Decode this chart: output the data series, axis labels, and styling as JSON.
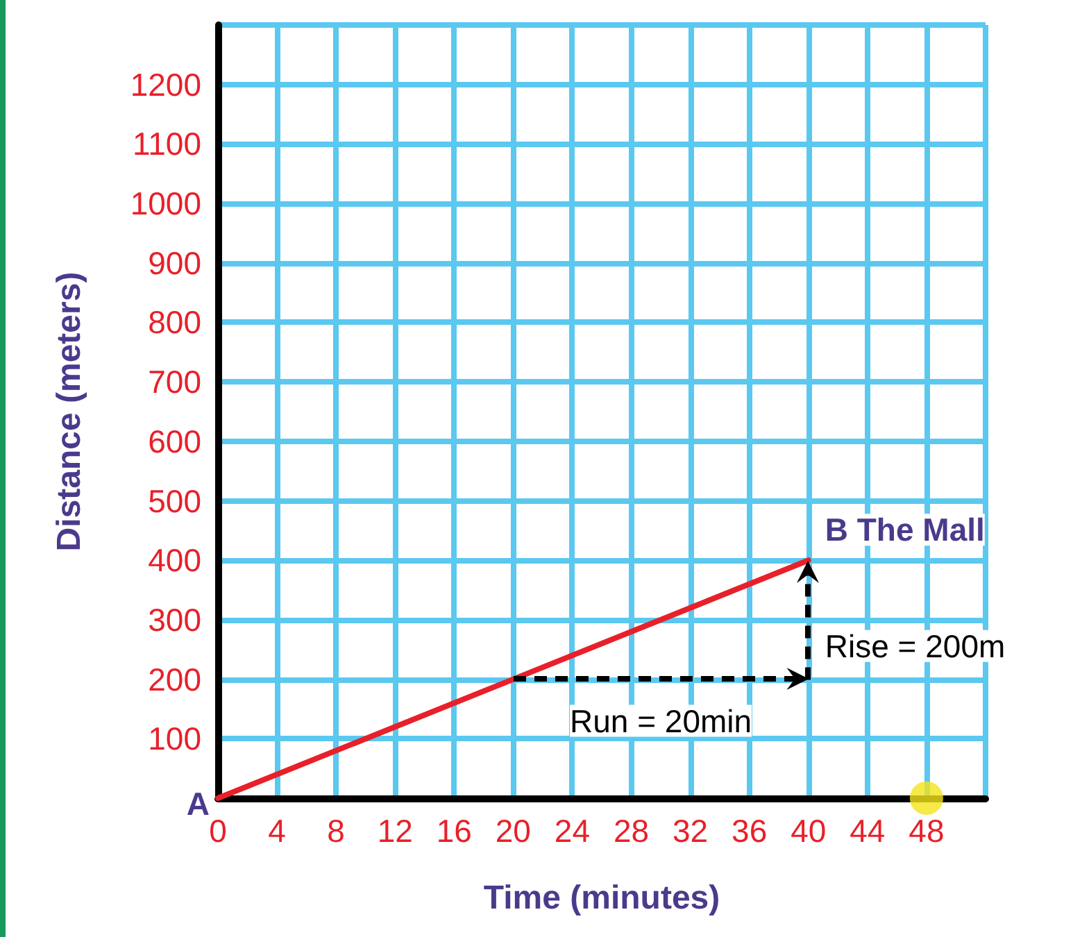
{
  "chart_data": {
    "type": "line",
    "xlabel": "Time (minutes)",
    "ylabel": "Distance (meters)",
    "xlim": [
      0,
      52
    ],
    "ylim": [
      0,
      1300
    ],
    "xticks": [
      0,
      4,
      8,
      12,
      16,
      20,
      24,
      28,
      32,
      36,
      40,
      44,
      48,
      {
        "value": 52,
        "label": null
      }
    ],
    "yticks": [
      {
        "value": 0,
        "label": null
      },
      100,
      200,
      300,
      400,
      500,
      600,
      700,
      800,
      900,
      1000,
      1100,
      1200,
      {
        "value": 1300,
        "label": null
      }
    ],
    "grid": true,
    "series": [
      {
        "color": "#e8202a",
        "x": [
          0,
          40
        ],
        "values": [
          0,
          400
        ]
      },
      {
        "type": "scatter",
        "color": "#f5e31a",
        "x": [
          48
        ],
        "values": [
          0
        ],
        "marker": "circle"
      }
    ],
    "annotations": [
      {
        "text": "A",
        "x": 0,
        "y": 0
      },
      {
        "text": "B The Mall",
        "x": 40,
        "y": 400
      },
      {
        "text": "Run = 20min",
        "x": 20,
        "y": 200
      },
      {
        "text": "Rise = 200m",
        "x": 40,
        "y": 400
      }
    ]
  }
}
